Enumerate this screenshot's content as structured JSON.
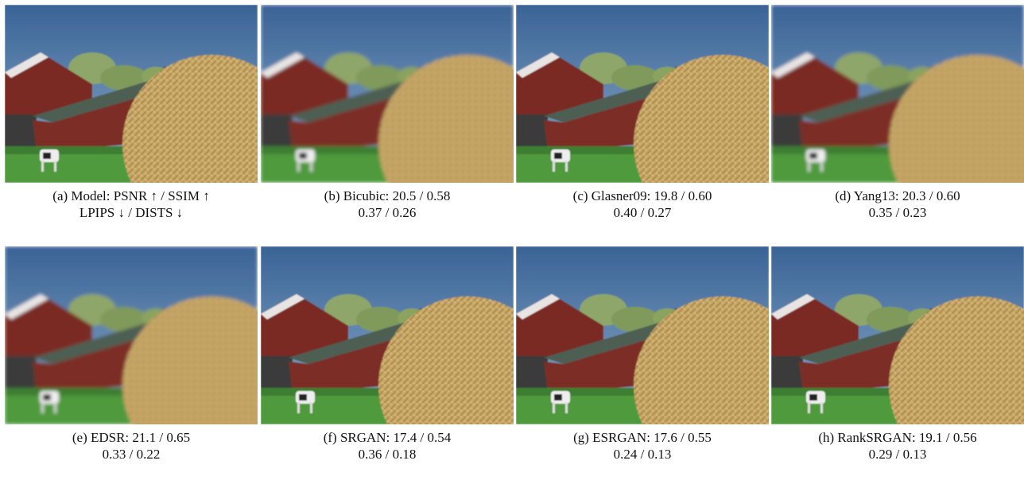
{
  "panels": [
    {
      "line1": "(a) Model: PSNR ↑ / SSIM ↑",
      "line2": "LPIPS ↓ / DISTS ↓"
    },
    {
      "line1": "(b) Bicubic: 20.5 / 0.58",
      "line2": "0.37 / 0.26"
    },
    {
      "line1": "(c) Glasner09: 19.8 / 0.60",
      "line2": "0.40 / 0.27"
    },
    {
      "line1": "(d) Yang13: 20.3 / 0.60",
      "line2": "0.35 / 0.23"
    },
    {
      "line1": "(e) EDSR: 21.1 / 0.65",
      "line2": "0.33 / 0.22"
    },
    {
      "line1": "(f) SRGAN: 17.4 / 0.54",
      "line2": "0.36 / 0.18"
    },
    {
      "line1": "(g) ESRGAN: 17.6 / 0.55",
      "line2": "0.24 / 0.13"
    },
    {
      "line1": "(h) RankSRGAN: 19.1 / 0.56",
      "line2": "0.29 / 0.13"
    }
  ]
}
